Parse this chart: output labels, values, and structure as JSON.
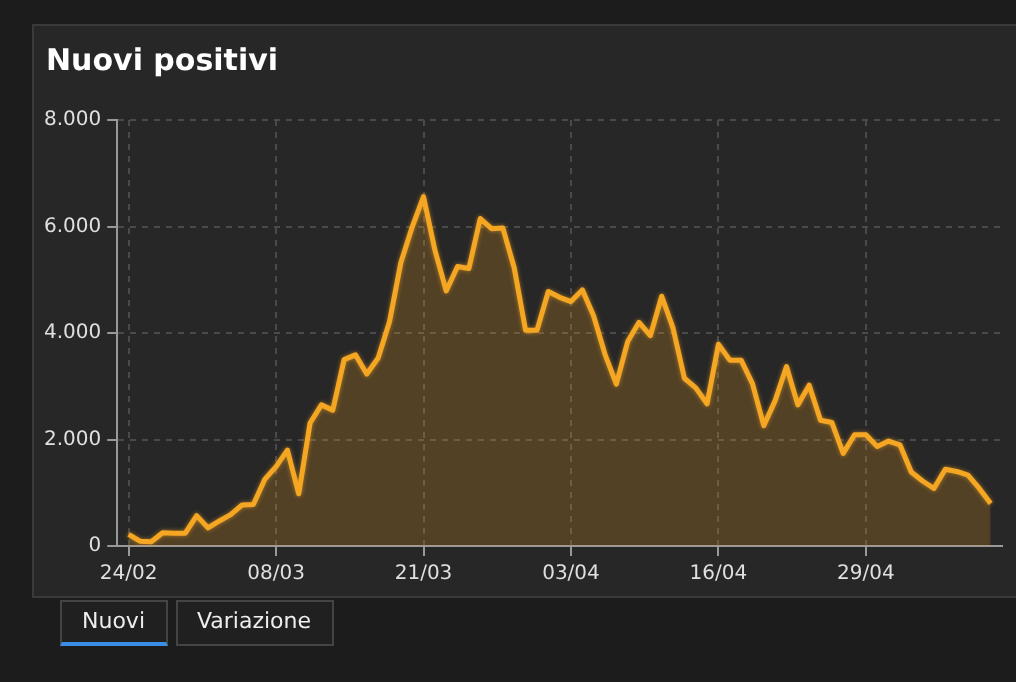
{
  "chart_data": {
    "type": "area",
    "title": "Nuovi positivi",
    "x": [
      "--02-24",
      "--02-25",
      "--02-26",
      "--02-27",
      "--02-28",
      "--02-29",
      "--03-01",
      "--03-02",
      "--03-03",
      "--03-04",
      "--03-05",
      "--03-06",
      "--03-07",
      "--03-08",
      "--03-09",
      "--03-10",
      "--03-11",
      "--03-12",
      "--03-13",
      "--03-14",
      "--03-15",
      "--03-16",
      "--03-17",
      "--03-18",
      "--03-19",
      "--03-20",
      "--03-21",
      "--03-22",
      "--03-23",
      "--03-24",
      "--03-25",
      "--03-26",
      "--03-27",
      "--03-28",
      "--03-29",
      "--03-30",
      "--03-31",
      "--04-01",
      "--04-02",
      "--04-03",
      "--04-04",
      "--04-05",
      "--04-06",
      "--04-07",
      "--04-08",
      "--04-09",
      "--04-10",
      "--04-11",
      "--04-12",
      "--04-13",
      "--04-14",
      "--04-15",
      "--04-16",
      "--04-17",
      "--04-18",
      "--04-19",
      "--04-20",
      "--04-21",
      "--04-22",
      "--04-23",
      "--04-24",
      "--04-25",
      "--04-26",
      "--04-27",
      "--04-28",
      "--04-29",
      "--04-30",
      "--05-01",
      "--05-02",
      "--05-03",
      "--05-04",
      "--05-05",
      "--05-06",
      "--05-07",
      "--05-08",
      "--05-09",
      "--05-10"
    ],
    "series": [
      {
        "color": "#f5a623",
        "values": [
          220,
          90,
          80,
          250,
          240,
          240,
          570,
          340,
          470,
          590,
          770,
          780,
          1250,
          1490,
          1800,
          980,
          2310,
          2650,
          2550,
          3500,
          3590,
          3230,
          3530,
          4210,
          5320,
          5990,
          6560,
          5560,
          4790,
          5250,
          5210,
          6150,
          5960,
          5970,
          5220,
          4050,
          4050,
          4780,
          4670,
          4590,
          4810,
          4320,
          3600,
          3040,
          3840,
          4200,
          3950,
          4690,
          4090,
          3150,
          2970,
          2670,
          3790,
          3490,
          3490,
          3050,
          2260,
          2730,
          3370,
          2650,
          3020,
          2360,
          2320,
          1740,
          2090,
          2090,
          1870,
          1970,
          1900,
          1390,
          1220,
          1080,
          1440,
          1400,
          1330,
          1080,
          800
        ]
      }
    ],
    "xlim": [
      "--02-23",
      "--05-11"
    ],
    "xticks": [
      {
        "value": "--02-24",
        "label": "24/02"
      },
      {
        "value": "--03-08",
        "label": "08/03"
      },
      {
        "value": "--03-21",
        "label": "21/03"
      },
      {
        "value": "--04-03",
        "label": "03/04"
      },
      {
        "value": "--04-16",
        "label": "16/04"
      },
      {
        "value": "--04-29",
        "label": "29/04"
      }
    ],
    "ylim": [
      0,
      8000
    ],
    "yticks": [
      0,
      {
        "value": 2000,
        "label": "2.000"
      },
      {
        "value": 4000,
        "label": "4.000"
      },
      {
        "value": 6000,
        "label": "6.000"
      },
      {
        "value": 8000,
        "label": "8.000"
      }
    ],
    "grid": true,
    "legend": false,
    "marker": "none",
    "line_style": "solid",
    "annotations": [
      "Nuovi",
      "Variazione"
    ]
  }
}
